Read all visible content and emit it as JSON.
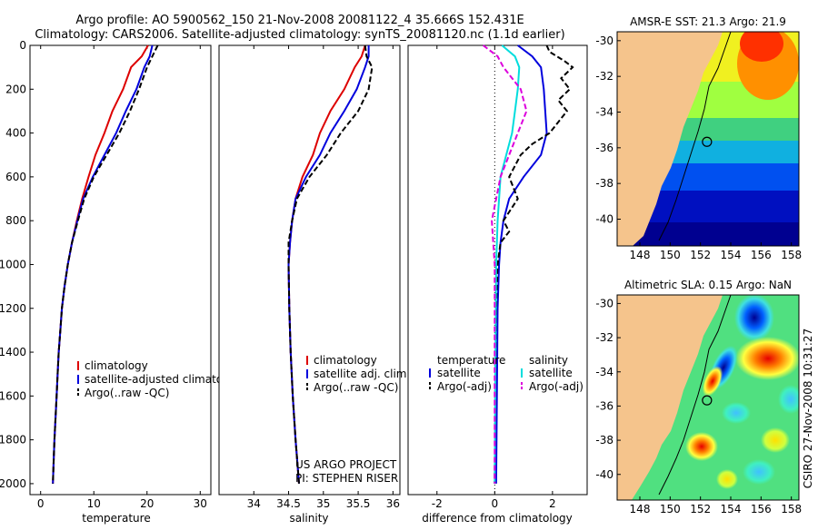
{
  "header": {
    "line1": "Argo profile: AO 5900562_150 21-Nov-2008 20081122_4 35.666S 152.431E",
    "line2": "Climatology: CARS2006. Satellite-adjusted climatology: synTS_20081120.nc (1.1d earlier)"
  },
  "colors": {
    "climatology": "#dd0000",
    "satellite": "#0000dd",
    "argo": "#000000",
    "satellite_salt": "#00dddd",
    "argo_salt_adj": "#dd00dd",
    "land": "#f5c48c"
  },
  "chart_data": [
    {
      "type": "line",
      "name": "temperature",
      "xlabel": "temperature",
      "xlim": [
        -2,
        32
      ],
      "xticks": [
        0,
        10,
        20,
        30
      ],
      "ylim": [
        2050,
        0
      ],
      "yticks": [
        0,
        200,
        400,
        600,
        800,
        1000,
        1200,
        1400,
        1600,
        1800,
        2000
      ],
      "legend": [
        "climatology",
        "satellite-adjusted climatology",
        "Argo(..raw -QC)"
      ],
      "series": [
        {
          "name": "climatology",
          "style": "solid",
          "color": "#dd0000",
          "points": [
            [
              20.2,
              0
            ],
            [
              19.0,
              50
            ],
            [
              17.0,
              100
            ],
            [
              15.5,
              200
            ],
            [
              13.5,
              300
            ],
            [
              12.0,
              400
            ],
            [
              10.3,
              500
            ],
            [
              9.0,
              600
            ],
            [
              7.8,
              700
            ],
            [
              6.8,
              800
            ],
            [
              5.9,
              900
            ],
            [
              5.1,
              1000
            ],
            [
              4.5,
              1100
            ],
            [
              4.0,
              1200
            ],
            [
              3.7,
              1300
            ],
            [
              3.4,
              1400
            ],
            [
              3.2,
              1500
            ],
            [
              3.0,
              1600
            ],
            [
              2.8,
              1700
            ],
            [
              2.6,
              1800
            ],
            [
              2.45,
              1900
            ],
            [
              2.3,
              2000
            ]
          ]
        },
        {
          "name": "satellite-adjusted climatology",
          "style": "solid",
          "color": "#0000dd",
          "points": [
            [
              21.0,
              0
            ],
            [
              20.5,
              50
            ],
            [
              19.5,
              100
            ],
            [
              18.0,
              200
            ],
            [
              16.0,
              300
            ],
            [
              14.2,
              400
            ],
            [
              12.0,
              500
            ],
            [
              9.8,
              600
            ],
            [
              8.0,
              700
            ],
            [
              6.9,
              800
            ],
            [
              5.9,
              900
            ],
            [
              5.1,
              1000
            ],
            [
              4.5,
              1100
            ],
            [
              4.0,
              1200
            ],
            [
              3.7,
              1300
            ],
            [
              3.4,
              1400
            ],
            [
              3.2,
              1500
            ],
            [
              3.0,
              1600
            ],
            [
              2.8,
              1700
            ],
            [
              2.6,
              1800
            ],
            [
              2.45,
              1900
            ],
            [
              2.3,
              2000
            ]
          ]
        },
        {
          "name": "Argo(..raw -QC)",
          "style": "dashed",
          "color": "#000000",
          "points": [
            [
              22.0,
              0
            ],
            [
              21.0,
              50
            ],
            [
              20.0,
              100
            ],
            [
              18.5,
              200
            ],
            [
              16.8,
              300
            ],
            [
              14.8,
              400
            ],
            [
              12.4,
              500
            ],
            [
              10.0,
              600
            ],
            [
              8.2,
              700
            ],
            [
              7.0,
              800
            ],
            [
              5.9,
              900
            ],
            [
              5.1,
              1000
            ],
            [
              4.5,
              1100
            ],
            [
              4.0,
              1200
            ],
            [
              3.7,
              1300
            ],
            [
              3.4,
              1400
            ],
            [
              3.2,
              1500
            ],
            [
              3.0,
              1600
            ],
            [
              2.8,
              1700
            ],
            [
              2.6,
              1800
            ],
            [
              2.45,
              1900
            ],
            [
              2.3,
              2000
            ]
          ]
        }
      ]
    },
    {
      "type": "line",
      "name": "salinity",
      "xlabel": "salinity",
      "xlim": [
        33.5,
        36.1
      ],
      "xticks": [
        34,
        34.5,
        35,
        35.5,
        36
      ],
      "ylim": [
        2050,
        0
      ],
      "legend": [
        "climatology",
        "satellite adj. clim.",
        "Argo(..raw -QC)"
      ],
      "annotation": [
        "US ARGO PROJECT",
        "PI: STEPHEN RISER"
      ],
      "series": [
        {
          "name": "climatology",
          "style": "solid",
          "color": "#dd0000",
          "points": [
            [
              35.6,
              0
            ],
            [
              35.55,
              50
            ],
            [
              35.45,
              100
            ],
            [
              35.3,
              200
            ],
            [
              35.1,
              300
            ],
            [
              34.95,
              400
            ],
            [
              34.85,
              500
            ],
            [
              34.7,
              600
            ],
            [
              34.6,
              700
            ],
            [
              34.55,
              800
            ],
            [
              34.52,
              900
            ],
            [
              34.5,
              1000
            ],
            [
              34.51,
              1200
            ],
            [
              34.53,
              1400
            ],
            [
              34.56,
              1600
            ],
            [
              34.6,
              1800
            ],
            [
              34.65,
              2000
            ]
          ]
        },
        {
          "name": "satellite adj. clim.",
          "style": "solid",
          "color": "#0000dd",
          "points": [
            [
              35.65,
              0
            ],
            [
              35.65,
              50
            ],
            [
              35.6,
              100
            ],
            [
              35.48,
              200
            ],
            [
              35.3,
              300
            ],
            [
              35.1,
              400
            ],
            [
              34.95,
              500
            ],
            [
              34.75,
              600
            ],
            [
              34.6,
              700
            ],
            [
              34.55,
              800
            ],
            [
              34.52,
              900
            ],
            [
              34.5,
              1000
            ],
            [
              34.51,
              1200
            ],
            [
              34.53,
              1400
            ],
            [
              34.56,
              1600
            ],
            [
              34.6,
              1800
            ],
            [
              34.65,
              2000
            ]
          ]
        },
        {
          "name": "Argo(..raw -QC)",
          "style": "dashed",
          "color": "#000000",
          "points": [
            [
              35.6,
              0
            ],
            [
              35.62,
              50
            ],
            [
              35.7,
              100
            ],
            [
              35.65,
              200
            ],
            [
              35.5,
              300
            ],
            [
              35.25,
              400
            ],
            [
              35.05,
              500
            ],
            [
              34.8,
              600
            ],
            [
              34.62,
              700
            ],
            [
              34.55,
              800
            ],
            [
              34.5,
              900
            ],
            [
              34.5,
              1000
            ],
            [
              34.51,
              1200
            ],
            [
              34.53,
              1400
            ],
            [
              34.56,
              1600
            ],
            [
              34.6,
              1800
            ],
            [
              34.65,
              2000
            ]
          ]
        }
      ]
    },
    {
      "type": "line",
      "name": "difference",
      "xlabel": "difference from climatology",
      "xlim": [
        -3,
        3.2
      ],
      "xticks": [
        -2,
        0,
        2
      ],
      "ylim": [
        2050,
        0
      ],
      "legend_left_title": "temperature",
      "legend_right_title": "salinity",
      "legend": [
        "satellite",
        "Argo(-adj)",
        "satellite",
        "Argo(-adj)"
      ],
      "series": [
        {
          "name": "temperature satellite",
          "style": "solid",
          "color": "#0000dd",
          "points": [
            [
              0.8,
              0
            ],
            [
              1.3,
              50
            ],
            [
              1.6,
              100
            ],
            [
              1.7,
              200
            ],
            [
              1.75,
              300
            ],
            [
              1.8,
              400
            ],
            [
              1.6,
              500
            ],
            [
              1.0,
              600
            ],
            [
              0.5,
              700
            ],
            [
              0.3,
              800
            ],
            [
              0.2,
              900
            ],
            [
              0.15,
              1000
            ],
            [
              0.1,
              1200
            ],
            [
              0.08,
              1500
            ],
            [
              0.05,
              2000
            ]
          ]
        },
        {
          "name": "temperature Argo(-adj)",
          "style": "dashed",
          "color": "#000000",
          "points": [
            [
              1.8,
              0
            ],
            [
              1.9,
              30
            ],
            [
              2.4,
              70
            ],
            [
              2.7,
              100
            ],
            [
              2.3,
              150
            ],
            [
              2.6,
              200
            ],
            [
              2.2,
              250
            ],
            [
              2.5,
              300
            ],
            [
              1.9,
              400
            ],
            [
              1.3,
              450
            ],
            [
              0.9,
              500
            ],
            [
              0.5,
              600
            ],
            [
              0.8,
              700
            ],
            [
              0.3,
              800
            ],
            [
              0.5,
              850
            ],
            [
              0.2,
              900
            ],
            [
              0.1,
              1000
            ],
            [
              0.05,
              1200
            ],
            [
              0.02,
              1500
            ],
            [
              0.0,
              2000
            ]
          ]
        },
        {
          "name": "salinity satellite",
          "style": "solid",
          "color": "#00dddd",
          "points": [
            [
              0.25,
              0
            ],
            [
              0.7,
              50
            ],
            [
              0.85,
              100
            ],
            [
              0.8,
              200
            ],
            [
              0.7,
              300
            ],
            [
              0.6,
              400
            ],
            [
              0.4,
              500
            ],
            [
              0.2,
              600
            ],
            [
              0.15,
              700
            ],
            [
              0.1,
              800
            ],
            [
              0.05,
              1000
            ],
            [
              0.02,
              1500
            ],
            [
              0.0,
              2000
            ]
          ]
        },
        {
          "name": "salinity Argo(-adj)",
          "style": "dashed",
          "color": "#dd00dd",
          "points": [
            [
              -0.4,
              0
            ],
            [
              0.1,
              50
            ],
            [
              0.3,
              100
            ],
            [
              0.9,
              200
            ],
            [
              1.1,
              300
            ],
            [
              0.8,
              400
            ],
            [
              0.5,
              500
            ],
            [
              0.2,
              600
            ],
            [
              0.05,
              700
            ],
            [
              -0.1,
              800
            ],
            [
              -0.05,
              900
            ],
            [
              0.0,
              1000
            ],
            [
              0.0,
              2000
            ]
          ]
        }
      ]
    },
    {
      "type": "heatmap",
      "name": "sst-map",
      "title": "AMSR-E SST: 21.3 Argo: 21.9",
      "xticks": [
        148,
        150,
        152,
        154,
        156,
        158
      ],
      "yticks": [
        -30,
        -32,
        -34,
        -36,
        -38,
        -40
      ],
      "xlim": [
        146.5,
        158.5
      ],
      "ylim": [
        -41.5,
        -29.5
      ],
      "marker": {
        "lon": 152.431,
        "lat": -35.666
      }
    },
    {
      "type": "heatmap",
      "name": "sla-map",
      "title": "Altimetric SLA: 0.15 Argo: NaN",
      "xticks": [
        148,
        150,
        152,
        154,
        156,
        158
      ],
      "yticks": [
        -30,
        -32,
        -34,
        -36,
        -38,
        -40
      ],
      "xlim": [
        146.5,
        158.5
      ],
      "ylim": [
        -41.5,
        -29.5
      ],
      "marker": {
        "lon": 152.431,
        "lat": -35.666
      }
    }
  ],
  "footer": {
    "side_text": "CSIRO 27-Nov-2008 10:31:27"
  }
}
